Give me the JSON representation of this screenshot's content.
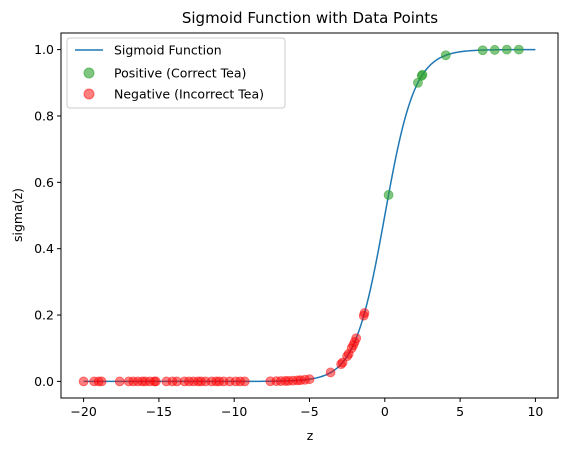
{
  "chart_data": {
    "type": "line+scatter",
    "title": "Sigmoid Function with Data Points",
    "xlabel": "z",
    "ylabel": "sigma(z)",
    "xlim": [
      -21.5,
      11.5
    ],
    "ylim": [
      -0.05,
      1.05
    ],
    "xticks": [
      -20,
      -15,
      -10,
      -5,
      0,
      5,
      10
    ],
    "xtick_labels": [
      "−20",
      "−15",
      "−10",
      "−5",
      "0",
      "5",
      "10"
    ],
    "yticks": [
      0.0,
      0.2,
      0.4,
      0.6,
      0.8,
      1.0
    ],
    "ytick_labels": [
      "0.0",
      "0.2",
      "0.4",
      "0.6",
      "0.8",
      "1.0"
    ],
    "curve": {
      "name": "Sigmoid Function",
      "color": "#1f77b4",
      "function": "1/(1+exp(-z))",
      "x_range": [
        -20,
        10
      ]
    },
    "series": [
      {
        "name": "Positive (Correct Tea)",
        "color": "#2ca02c",
        "alpha": 0.6,
        "x": [
          0.25,
          2.2,
          2.45,
          2.5,
          4.05,
          6.5,
          7.3,
          8.1,
          8.9
        ],
        "y": [
          0.562,
          0.9,
          0.921,
          0.924,
          0.983,
          0.998,
          0.999,
          1.0,
          1.0
        ]
      },
      {
        "name": "Negative (Incorrect Tea)",
        "color": "#ff0000",
        "alpha": 0.5,
        "x": [
          -20.0,
          -19.3,
          -19.0,
          -18.8,
          -17.6,
          -17.0,
          -16.7,
          -16.4,
          -16.1,
          -15.9,
          -15.6,
          -15.3,
          -15.2,
          -14.5,
          -14.1,
          -13.8,
          -13.3,
          -13.0,
          -12.7,
          -12.4,
          -12.2,
          -11.9,
          -11.5,
          -11.2,
          -11.0,
          -10.7,
          -10.3,
          -9.9,
          -9.6,
          -9.3,
          -7.6,
          -7.2,
          -6.9,
          -6.6,
          -6.4,
          -6.1,
          -5.8,
          -5.6,
          -5.3,
          -5.0,
          -3.6,
          -2.9,
          -2.8,
          -2.5,
          -2.4,
          -2.2,
          -2.1,
          -2.0,
          -1.9,
          -1.4,
          -1.35
        ],
        "y": [
          0.0,
          0.0,
          0.0,
          0.0,
          0.0,
          0.0,
          0.0,
          0.0,
          0.0,
          0.0,
          0.0,
          0.0,
          0.0,
          0.0,
          0.0,
          0.0,
          0.0,
          0.0,
          0.0,
          0.0,
          0.0,
          0.0,
          0.0,
          0.0,
          0.0,
          0.0,
          0.0,
          0.0,
          0.0,
          0.0,
          0.0005,
          0.0007,
          0.001,
          0.0014,
          0.0017,
          0.0022,
          0.003,
          0.0037,
          0.005,
          0.0067,
          0.027,
          0.052,
          0.057,
          0.076,
          0.083,
          0.1,
          0.109,
          0.119,
          0.13,
          0.198,
          0.206
        ]
      }
    ],
    "legend": {
      "position": "top-left",
      "entries": [
        "Sigmoid Function",
        "Positive (Correct Tea)",
        "Negative (Incorrect Tea)"
      ]
    }
  }
}
